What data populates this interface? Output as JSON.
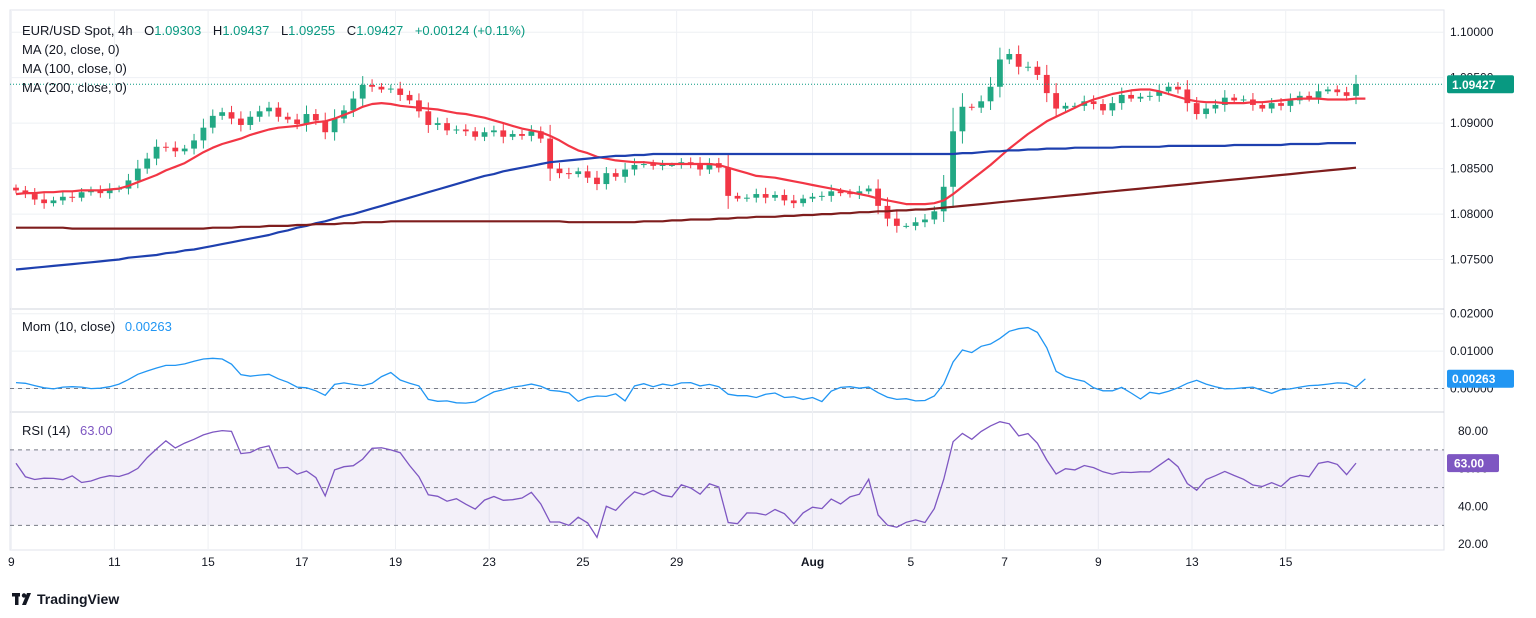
{
  "header": {
    "symbol": "EUR/USD Spot, 4h",
    "o_label": "O",
    "o_value": "1.09303",
    "h_label": "H",
    "h_value": "1.09437",
    "l_label": "L",
    "l_value": "1.09255",
    "c_label": "C",
    "c_value": "1.09427",
    "change": "+0.00124 (+0.11%)",
    "ma_labels": [
      "MA (20, close, 0)",
      "MA (100, close, 0)",
      "MA (200, close, 0)"
    ]
  },
  "colors": {
    "up": "#22a884",
    "down": "#f23645",
    "ma20": "#f23645",
    "ma100": "#1e40af",
    "ma200": "#7f1d1d",
    "mom": "#2196f3",
    "rsi": "#7e57c2",
    "teal": "#089981",
    "grid": "#eef0f4",
    "axis_text": "#131722",
    "dashes": "#9aa0aa"
  },
  "branding": {
    "logo_text": "TradingView"
  },
  "chart_data": [
    {
      "type": "candlestick",
      "title": "EUR/USD Spot, 4h",
      "ylim": [
        1.07,
        1.102
      ],
      "y_ticks": [
        "1.10000",
        "1.09500",
        "1.09000",
        "1.08500",
        "1.08000",
        "1.07500"
      ],
      "y_tick_values": [
        1.1,
        1.095,
        1.09,
        1.085,
        1.08,
        1.075
      ],
      "x_tick_labels": [
        "9",
        "11",
        "15",
        "17",
        "19",
        "23",
        "25",
        "29",
        "Aug",
        "5",
        "7",
        "9",
        "13",
        "15"
      ],
      "x_tick_index": [
        -0.5,
        10.5,
        20.5,
        30.5,
        40.5,
        50.5,
        60.5,
        70.5,
        85,
        95.5,
        105.5,
        115.5,
        125.5,
        135.5
      ],
      "last_price_label": "1.09427",
      "last_price": 1.09427,
      "closes": [
        1.0826,
        1.0822,
        1.0816,
        1.0812,
        1.0815,
        1.0819,
        1.0818,
        1.0824,
        1.0826,
        1.0823,
        1.0827,
        1.0828,
        1.0837,
        1.085,
        1.0861,
        1.0874,
        1.0873,
        1.0869,
        1.0872,
        1.0881,
        1.0895,
        1.0908,
        1.0912,
        1.0905,
        1.0898,
        1.0907,
        1.0913,
        1.0917,
        1.0907,
        1.0904,
        1.0899,
        1.091,
        1.0903,
        1.089,
        1.0905,
        1.0914,
        1.0927,
        1.0942,
        1.094,
        1.0937,
        1.0938,
        1.0931,
        1.0925,
        1.0913,
        1.0898,
        1.09,
        1.0892,
        1.0893,
        1.0891,
        1.0885,
        1.089,
        1.0892,
        1.0885,
        1.0888,
        1.0886,
        1.0891,
        1.0883,
        1.085,
        1.0845,
        1.0844,
        1.0847,
        1.084,
        1.0833,
        1.0845,
        1.0841,
        1.0849,
        1.0854,
        1.0855,
        1.0853,
        1.0854,
        1.0854,
        1.0857,
        1.0855,
        1.0849,
        1.0856,
        1.0851,
        1.082,
        1.0817,
        1.0818,
        1.0822,
        1.0818,
        1.0821,
        1.0815,
        1.0812,
        1.0817,
        1.0819,
        1.082,
        1.0825,
        1.0823,
        1.0822,
        1.0825,
        1.0828,
        1.0809,
        1.0795,
        1.0787,
        1.0787,
        1.0791,
        1.0794,
        1.0803,
        1.083,
        1.0891,
        1.0918,
        1.0917,
        1.0924,
        1.094,
        1.097,
        1.0976,
        1.0962,
        1.0962,
        1.0953,
        1.0933,
        1.0916,
        1.0919,
        1.0919,
        1.0924,
        1.0921,
        1.0914,
        1.0922,
        1.0931,
        1.0927,
        1.0929,
        1.093,
        1.0935,
        1.094,
        1.0937,
        1.0922,
        1.091,
        1.0916,
        1.092,
        1.0928,
        1.0925,
        1.0926,
        1.092,
        1.0916,
        1.0922,
        1.0919,
        1.0925,
        1.093,
        1.0928,
        1.0935,
        1.0937,
        1.0934,
        1.093,
        1.0943
      ],
      "series": [
        {
          "name": "MA (20, close, 0)",
          "values": [
            1.0822,
            1.0823,
            1.0823,
            1.0824,
            1.0824,
            1.0825,
            1.0825,
            1.0826,
            1.0826,
            1.0826,
            1.0827,
            1.0828,
            1.0831,
            1.0835,
            1.0839,
            1.0843,
            1.0848,
            1.0852,
            1.0856,
            1.0862,
            1.0868,
            1.0873,
            1.0877,
            1.088,
            1.0883,
            1.0887,
            1.089,
            1.0893,
            1.0895,
            1.0896,
            1.0897,
            1.0899,
            1.0901,
            1.0902,
            1.0905,
            1.0909,
            1.0913,
            1.0918,
            1.0921,
            1.0922,
            1.0921,
            1.0919,
            1.0918,
            1.0917,
            1.0916,
            1.0915,
            1.0913,
            1.0911,
            1.091,
            1.0908,
            1.0906,
            1.0903,
            1.09,
            1.0897,
            1.0894,
            1.0892,
            1.089,
            1.0886,
            1.0881,
            1.0875,
            1.087,
            1.0867,
            1.0863,
            1.0861,
            1.0859,
            1.0858,
            1.0857,
            1.0857,
            1.0856,
            1.0855,
            1.0855,
            1.0855,
            1.0855,
            1.0855,
            1.0855,
            1.0854,
            1.0851,
            1.0848,
            1.0845,
            1.0842,
            1.0841,
            1.084,
            1.0838,
            1.0836,
            1.0834,
            1.0832,
            1.083,
            1.0828,
            1.0826,
            1.0824,
            1.0822,
            1.082,
            1.0817,
            1.0815,
            1.0813,
            1.0811,
            1.0811,
            1.0811,
            1.0812,
            1.0815,
            1.0822,
            1.083,
            1.0838,
            1.0846,
            1.0854,
            1.0863,
            1.0872,
            1.088,
            1.0888,
            1.0895,
            1.0902,
            1.0907,
            1.0912,
            1.0917,
            1.0922,
            1.0926,
            1.0929,
            1.0932,
            1.0934,
            1.0936,
            1.0937,
            1.0937,
            1.0935,
            1.0932,
            1.0929,
            1.0926,
            1.0924,
            1.0923,
            1.0923,
            1.0922,
            1.0922,
            1.0922,
            1.0923,
            1.0923,
            1.0924,
            1.0925,
            1.0926,
            1.0927,
            1.0927,
            1.0927,
            1.0926,
            1.0926,
            1.0926,
            1.0927,
            1.0927
          ]
        },
        {
          "name": "MA (100, close, 0)",
          "values": [
            1.0739,
            1.074,
            1.0741,
            1.0742,
            1.0743,
            1.0744,
            1.0745,
            1.0746,
            1.0747,
            1.0748,
            1.0749,
            1.075,
            1.0752,
            1.0753,
            1.0754,
            1.0755,
            1.0757,
            1.0758,
            1.076,
            1.0761,
            1.0763,
            1.0765,
            1.0767,
            1.0769,
            1.0771,
            1.0773,
            1.0775,
            1.0777,
            1.078,
            1.0782,
            1.0785,
            1.0787,
            1.079,
            1.0792,
            1.0795,
            1.0798,
            1.08,
            1.0803,
            1.0806,
            1.0809,
            1.0812,
            1.0815,
            1.0818,
            1.0821,
            1.0824,
            1.0827,
            1.083,
            1.0833,
            1.0836,
            1.0839,
            1.0842,
            1.0844,
            1.0847,
            1.0849,
            1.0851,
            1.0853,
            1.0855,
            1.0857,
            1.0858,
            1.0859,
            1.086,
            1.0861,
            1.0862,
            1.0863,
            1.0864,
            1.0864,
            1.0865,
            1.0865,
            1.0866,
            1.0866,
            1.0866,
            1.0866,
            1.0866,
            1.0866,
            1.0866,
            1.0866,
            1.0866,
            1.0866,
            1.0866,
            1.0866,
            1.0866,
            1.0866,
            1.0866,
            1.0866,
            1.0866,
            1.0866,
            1.0866,
            1.0866,
            1.0866,
            1.0866,
            1.0866,
            1.0866,
            1.0866,
            1.0866,
            1.0866,
            1.0866,
            1.0866,
            1.0866,
            1.0866,
            1.0866,
            1.0866,
            1.0867,
            1.0867,
            1.0868,
            1.0869,
            1.0869,
            1.087,
            1.087,
            1.0871,
            1.0871,
            1.0872,
            1.0872,
            1.0872,
            1.0873,
            1.0873,
            1.0873,
            1.0873,
            1.0873,
            1.0874,
            1.0874,
            1.0874,
            1.0874,
            1.0874,
            1.0875,
            1.0875,
            1.0875,
            1.0875,
            1.0875,
            1.0875,
            1.0875,
            1.0876,
            1.0876,
            1.0876,
            1.0876,
            1.0876,
            1.0876,
            1.0877,
            1.0877,
            1.0877,
            1.0877,
            1.0878,
            1.0878,
            1.0878,
            1.0878
          ]
        },
        {
          "name": "MA (200, close, 0)",
          "values": [
            1.0785,
            1.0785,
            1.0785,
            1.0785,
            1.0785,
            1.0785,
            1.0784,
            1.0784,
            1.0784,
            1.0784,
            1.0784,
            1.0784,
            1.0784,
            1.0784,
            1.0784,
            1.0784,
            1.0784,
            1.0784,
            1.0784,
            1.0784,
            1.0784,
            1.0785,
            1.0785,
            1.0785,
            1.0786,
            1.0786,
            1.0786,
            1.0787,
            1.0787,
            1.0787,
            1.0788,
            1.0788,
            1.0789,
            1.0789,
            1.0789,
            1.079,
            1.079,
            1.0791,
            1.0791,
            1.0791,
            1.0792,
            1.0792,
            1.0792,
            1.0792,
            1.0792,
            1.0792,
            1.0792,
            1.0792,
            1.0792,
            1.0792,
            1.0792,
            1.0792,
            1.0792,
            1.0792,
            1.0792,
            1.0792,
            1.0792,
            1.0792,
            1.0792,
            1.0791,
            1.0791,
            1.0791,
            1.0791,
            1.0791,
            1.0791,
            1.0791,
            1.0791,
            1.0792,
            1.0792,
            1.0792,
            1.0793,
            1.0793,
            1.0794,
            1.0794,
            1.0794,
            1.0795,
            1.0795,
            1.0796,
            1.0796,
            1.0797,
            1.0797,
            1.0797,
            1.0798,
            1.0798,
            1.0799,
            1.0799,
            1.08,
            1.08,
            1.0801,
            1.0801,
            1.0802,
            1.0802,
            1.0803,
            1.0803,
            1.0804,
            1.0804,
            1.0805,
            1.0805,
            1.0806,
            1.0807,
            1.0808,
            1.0809,
            1.081,
            1.0811,
            1.0812,
            1.0813,
            1.0814,
            1.0815,
            1.0816,
            1.0817,
            1.0818,
            1.0819,
            1.082,
            1.0821,
            1.0822,
            1.0823,
            1.0824,
            1.0825,
            1.0826,
            1.0827,
            1.0828,
            1.0829,
            1.083,
            1.0831,
            1.0832,
            1.0833,
            1.0834,
            1.0835,
            1.0836,
            1.0837,
            1.0838,
            1.0839,
            1.084,
            1.0841,
            1.0842,
            1.0843,
            1.0844,
            1.0845,
            1.0846,
            1.0847,
            1.0848,
            1.0849,
            1.085,
            1.0851
          ]
        }
      ]
    },
    {
      "type": "line",
      "title": "Mom (10, close)",
      "value_label": "0.00263",
      "last_value": 0.00263,
      "ylim": [
        -0.006,
        0.021
      ],
      "y_ticks": [
        "0.02000",
        "0.01000",
        "0.00000"
      ],
      "y_tick_values": [
        0.02,
        0.01,
        0.0
      ],
      "zero_line": 0.0,
      "values": [
        0.0016,
        0.0014,
        0.0008,
        0.0002,
        -0.0001,
        0.0004,
        0.0005,
        0.0004,
        0.0,
        0.0001,
        0.0005,
        0.0012,
        0.0024,
        0.0038,
        0.0047,
        0.0055,
        0.0062,
        0.0062,
        0.0066,
        0.0073,
        0.0079,
        0.0081,
        0.0079,
        0.0065,
        0.0037,
        0.0033,
        0.0036,
        0.0038,
        0.0026,
        0.0017,
        0.0004,
        0.0002,
        -0.0006,
        -0.0018,
        0.0011,
        0.0015,
        0.0011,
        0.0008,
        0.0014,
        0.0032,
        0.0043,
        0.0023,
        0.0014,
        0.0007,
        -0.0029,
        -0.0034,
        -0.0033,
        -0.0038,
        -0.0039,
        -0.0036,
        -0.0022,
        -0.0009,
        -0.0003,
        0.0004,
        0.0007,
        0.0012,
        0.0006,
        -0.0005,
        -0.0007,
        -0.0012,
        -0.0034,
        -0.0024,
        -0.002,
        -0.0021,
        -0.0014,
        -0.0033,
        0.0007,
        0.0013,
        0.0005,
        0.0012,
        0.0008,
        0.0015,
        0.0016,
        0.0007,
        0.0011,
        0.0005,
        -0.0015,
        -0.0019,
        -0.0019,
        -0.0024,
        -0.0015,
        -0.0012,
        -0.0024,
        -0.0022,
        -0.0029,
        -0.0024,
        -0.0035,
        -0.0007,
        0.0003,
        0.0005,
        0.0001,
        0.0004,
        -0.0011,
        -0.0023,
        -0.0029,
        -0.0027,
        -0.0033,
        -0.0032,
        -0.002,
        0.0012,
        0.0071,
        0.0103,
        0.0096,
        0.0113,
        0.0119,
        0.0134,
        0.0153,
        0.016,
        0.0163,
        0.015,
        0.0109,
        0.0046,
        0.0032,
        0.0025,
        0.0019,
        0.0002,
        -0.0006,
        -0.0006,
        0.0003,
        -0.0012,
        -0.0028,
        -0.001,
        -0.0014,
        -0.0007,
        0.0002,
        0.0014,
        0.0022,
        0.0012,
        0.0005,
        -0.0001,
        0.0,
        0.0002,
        0.0004,
        -0.0005,
        -0.0013,
        -0.0003,
        -0.0001,
        0.0004,
        0.0008,
        0.0009,
        0.0012,
        0.0015,
        0.0014,
        0.0004,
        0.0026
      ]
    },
    {
      "type": "line",
      "title": "RSI (14)",
      "value_label": "63.00",
      "last_value": 63.0,
      "ylim": [
        18,
        89
      ],
      "y_ticks": [
        "80.00",
        "60.00",
        "40.00",
        "20.00"
      ],
      "y_tick_values": [
        80,
        60,
        40,
        20
      ],
      "band": [
        30,
        70
      ],
      "mid_line": 50,
      "values": [
        62.9,
        55.7,
        54.3,
        55.0,
        54.9,
        54.2,
        56.2,
        52.7,
        53.5,
        55.2,
        56.3,
        55.9,
        57.4,
        60.2,
        65.9,
        70.5,
        74.8,
        71.0,
        73.6,
        75.6,
        77.9,
        79.4,
        80.2,
        79.8,
        68.0,
        68.6,
        71.0,
        72.1,
        60.4,
        60.7,
        57.1,
        58.8,
        55.3,
        45.6,
        59.4,
        61.1,
        61.6,
        65.1,
        70.8,
        71.1,
        70.0,
        68.5,
        61.7,
        55.8,
        46.2,
        45.4,
        42.8,
        44.1,
        41.2,
        38.6,
        43.4,
        45.3,
        43.3,
        43.6,
        44.5,
        47.5,
        41.3,
        31.8,
        31.8,
        30.0,
        34.3,
        31.3,
        23.6,
        40.1,
        37.9,
        43.3,
        47.7,
        46.2,
        48.5,
        46.0,
        45.1,
        51.5,
        49.8,
        46.5,
        52.0,
        50.3,
        31.5,
        30.9,
        36.6,
        36.5,
        35.5,
        38.4,
        36.2,
        30.9,
        36.6,
        39.6,
        38.9,
        43.9,
        41.3,
        45.1,
        46.5,
        54.4,
        35.5,
        30.1,
        29.0,
        31.6,
        32.9,
        31.5,
        38.9,
        54.3,
        74.3,
        78.7,
        75.6,
        79.8,
        82.7,
        84.9,
        83.8,
        77.4,
        78.6,
        73.5,
        64.6,
        57.2,
        60.0,
        59.4,
        61.7,
        60.6,
        58.4,
        57.1,
        58.2,
        58.0,
        58.4,
        58.3,
        61.8,
        65.3,
        61.1,
        52.2,
        48.6,
        54.3,
        56.3,
        58.6,
        56.4,
        54.4,
        51.4,
        50.6,
        52.6,
        50.6,
        55.1,
        56.5,
        55.7,
        62.9,
        63.8,
        62.3,
        56.9,
        63.0
      ]
    }
  ]
}
